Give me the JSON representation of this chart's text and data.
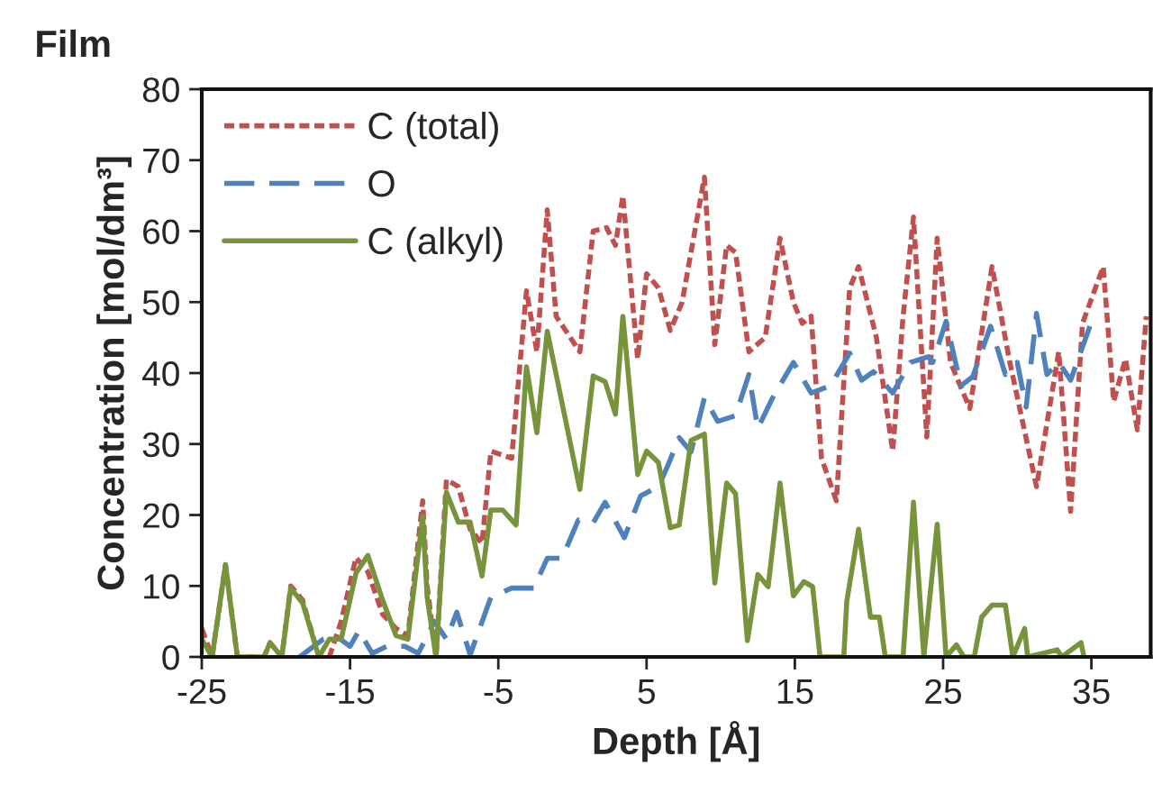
{
  "chart_data": {
    "type": "line",
    "title": "Film",
    "xlabel": "Depth [Å]",
    "ylabel": "Concentration [mol/dm³]",
    "xlim": [
      -25,
      39
    ],
    "xticks": [
      -25,
      -15,
      -5,
      5,
      15,
      25,
      35
    ],
    "ylim": [
      0,
      80
    ],
    "yticks": [
      0,
      10,
      20,
      30,
      40,
      50,
      60,
      70,
      80
    ],
    "grid": false,
    "legend": "top left",
    "marker": "none",
    "series": [
      {
        "name": "C (total)",
        "color": "#c0504d",
        "line_style": "dotted",
        "x": [
          -25,
          -24.3,
          -23.4,
          -22.6,
          -20.8,
          -20.4,
          -19.6,
          -19,
          -18.2,
          -17.1,
          -16.4,
          -15.6,
          -14.6,
          -13.8,
          -12.8,
          -11.9,
          -11.1,
          -10.1,
          -9.8,
          -9.2,
          -8.5,
          -7.7,
          -6.9,
          -6.1,
          -5.5,
          -4.1,
          -3.1,
          -2.4,
          -1.7,
          -1.1,
          0.5,
          1.4,
          2.3,
          2.9,
          3.4,
          4.4,
          5,
          5.8,
          6.6,
          7.4,
          8.9,
          9.6,
          10.4,
          11,
          11.9,
          13,
          14,
          14.9,
          15.5,
          16.1,
          16.8,
          17.8,
          18.7,
          19.3,
          20.5,
          21.6,
          22.3,
          23,
          23.9,
          24.6,
          25.5,
          26.8,
          28.3,
          29.5,
          31.3,
          32.8,
          33.6,
          34.4,
          35.8,
          36.5,
          37.3,
          38.1,
          38.7
        ],
        "values": [
          4,
          0,
          13,
          0,
          0,
          2,
          0,
          10,
          8,
          0,
          0,
          5,
          14,
          12,
          6,
          4,
          3,
          22,
          10,
          0,
          25,
          24,
          18,
          16,
          29,
          28,
          51.6,
          43,
          63,
          48,
          43,
          60,
          60.5,
          58,
          65,
          42,
          54,
          52,
          46,
          50,
          67.6,
          44,
          58,
          57,
          43,
          45,
          59,
          50,
          47,
          48,
          28,
          22,
          52,
          55,
          45,
          29,
          48,
          62,
          31,
          59,
          41.5,
          35,
          55,
          41.5,
          24,
          43,
          20.5,
          47,
          55,
          36,
          42,
          32,
          48
        ]
      },
      {
        "name": "O",
        "color": "#4f81bd",
        "line_style": "dashed",
        "x": [
          -18.4,
          -16.8,
          -16,
          -15,
          -14.4,
          -13.5,
          -12.5,
          -11.3,
          -10.4,
          -9.3,
          -8.5,
          -7.8,
          -6.9,
          -5.5,
          -4.1,
          -2.6,
          -1.7,
          -0.7,
          0.4,
          1.4,
          2.2,
          3.5,
          4.6,
          5.8,
          6.4,
          7.2,
          8,
          8.9,
          9.8,
          11,
          11.9,
          12.5,
          13.5,
          14.9,
          16.1,
          17.4,
          18.7,
          19.5,
          20.3,
          21.6,
          22.8,
          24,
          24.3,
          25.2,
          26.2,
          27,
          28.2,
          29.2,
          30,
          30.6,
          31.3,
          32,
          32.8,
          33.6,
          34.9
        ],
        "values": [
          0,
          2.5,
          3,
          1.5,
          3.7,
          0.5,
          1.5,
          1.5,
          0.5,
          5,
          2.5,
          6.3,
          0.3,
          8.4,
          9.7,
          9.7,
          13.9,
          13.9,
          19.3,
          18.9,
          21.8,
          16.8,
          22.7,
          24,
          26.8,
          30.9,
          28.9,
          36.5,
          33.2,
          34,
          39.8,
          32.2,
          36.5,
          41.5,
          37.2,
          38.2,
          42.8,
          39,
          40.2,
          37.2,
          41.5,
          42.3,
          41.5,
          47.3,
          38.2,
          39.5,
          46.6,
          39.8,
          41.5,
          35.2,
          48.4,
          39.8,
          41.5,
          39,
          46.6
        ]
      },
      {
        "name": "C (alkyl)",
        "color": "#77933c",
        "line_style": "solid",
        "x": [
          -25,
          -24.3,
          -23.4,
          -22.6,
          -20.8,
          -20.4,
          -19.6,
          -19,
          -18.2,
          -17.1,
          -16.4,
          -15.6,
          -14.6,
          -13.8,
          -12.8,
          -11.9,
          -11.1,
          -10.1,
          -9.8,
          -9.2,
          -8.5,
          -7.7,
          -6.9,
          -6.1,
          -5.5,
          -4.7,
          -3.8,
          -3.1,
          -2.4,
          -1.7,
          0.5,
          1.4,
          2.2,
          2.9,
          3.4,
          4.4,
          5,
          5.8,
          6.6,
          7.2,
          8,
          8.9,
          9.6,
          10.4,
          11,
          11.8,
          12.5,
          13.2,
          14,
          14.9,
          15.6,
          16.2,
          16.7,
          18.3,
          18.5,
          19.3,
          20.1,
          20.7,
          21.1,
          22.3,
          23,
          23.7,
          24.6,
          25.2,
          25.9,
          26.4,
          27.1,
          27.6,
          28.3,
          29.2,
          29.7,
          30.5,
          30.7,
          32.7,
          33,
          34.3,
          34.5
        ],
        "values": [
          2.5,
          0,
          13,
          0,
          0,
          2,
          0,
          9.7,
          7.6,
          0,
          2.5,
          2.5,
          11.8,
          14.3,
          8,
          3,
          2.5,
          19.8,
          8.4,
          0,
          23.2,
          19,
          19,
          11.4,
          20.7,
          20.7,
          18.6,
          40.9,
          31.6,
          45.9,
          23.6,
          39.6,
          38.8,
          34.2,
          48,
          25.7,
          29,
          27.4,
          18.2,
          18.6,
          30.5,
          31.4,
          10.4,
          24.5,
          23,
          2.3,
          11.6,
          9.9,
          24.5,
          8.6,
          10.6,
          9.9,
          0,
          0,
          7.8,
          18,
          5.6,
          5.6,
          0,
          0,
          21.8,
          0,
          18.7,
          0,
          1.7,
          0,
          0,
          5.6,
          7.3,
          7.3,
          0,
          4,
          0,
          1,
          0,
          2,
          0
        ]
      }
    ]
  }
}
